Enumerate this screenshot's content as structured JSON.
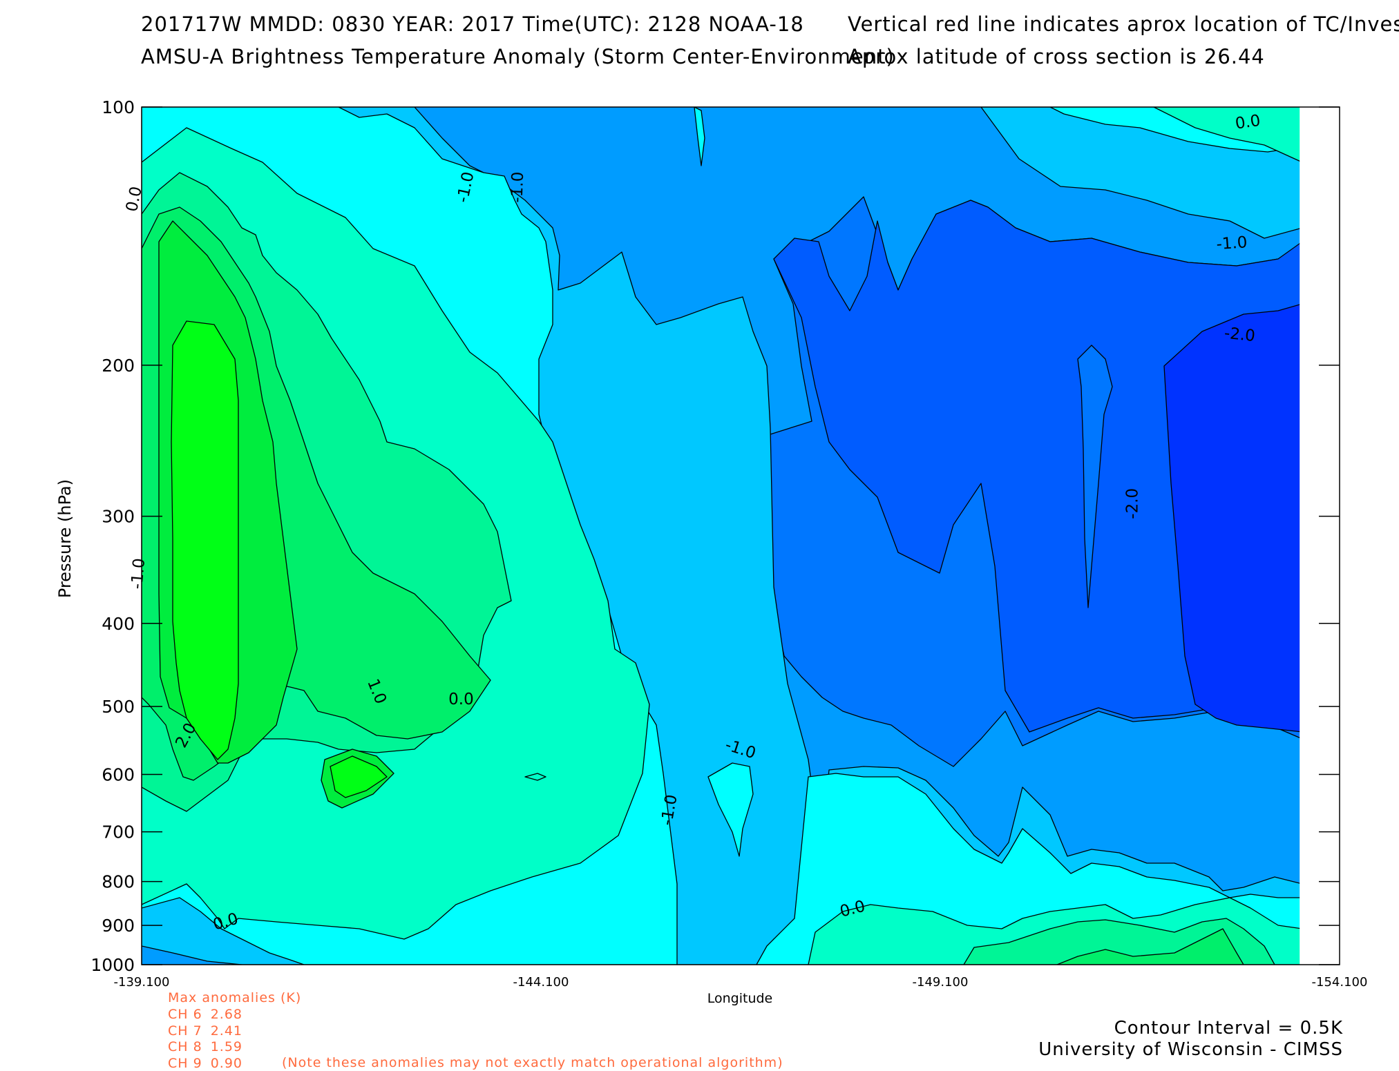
{
  "header": {
    "line1_left": "201717W  MMDD: 0830 YEAR: 2017 Time(UTC): 2128 NOAA-18",
    "line1_right": "Vertical red line indicates aprox location of TC/Invest",
    "line2_left": "AMSU-A Brightness Temperature Anomaly (Storm Center-Environment)",
    "line2_right": "Aprox latitude of cross section is 26.44"
  },
  "chart_data": {
    "type": "contour",
    "xlabel": "Longitude",
    "ylabel": "Pressure (hPa)",
    "x_ticks": [
      -139.1,
      -144.1,
      -149.1,
      -154.1
    ],
    "x_tick_labels": [
      "-139.100",
      "-144.100",
      "-149.100",
      "-154.100"
    ],
    "xlim": [
      -139.1,
      -154.1
    ],
    "x_data_end": -153.6,
    "y_ticks": [
      100,
      200,
      300,
      400,
      500,
      600,
      700,
      800,
      900,
      1000
    ],
    "y_tick_labels": [
      "100",
      "200",
      "300",
      "400",
      "500",
      "600",
      "700",
      "800",
      "900",
      "1000"
    ],
    "ylim": [
      100,
      1000
    ],
    "y_scale": "log",
    "contour_interval_K": 0.5,
    "color_levels": [
      {
        "range": "< -2.5",
        "color": "#0033ff"
      },
      {
        "range": "-2.5 to -2.0",
        "color": "#005cff"
      },
      {
        "range": "-2.0 to -1.5",
        "color": "#0077ff"
      },
      {
        "range": "-1.5 to -1.0",
        "color": "#009cff"
      },
      {
        "range": "-1.0 to -0.5",
        "color": "#00c8ff"
      },
      {
        "range": "-0.5 to 0.0",
        "color": "#00ffff"
      },
      {
        "range": "0.0 to 0.5",
        "color": "#00ffc8"
      },
      {
        "range": "0.5 to 1.0",
        "color": "#00f596"
      },
      {
        "range": "1.0 to 1.5",
        "color": "#00ef6b"
      },
      {
        "range": "1.5 to 2.0",
        "color": "#00ed3e"
      },
      {
        "range": "> 2.0",
        "color": "#00ff16"
      }
    ],
    "contour_labels": [
      {
        "text": "0.0",
        "x": -139.0,
        "y": 128,
        "rotate": -78
      },
      {
        "text": "-1.0",
        "x": -143.15,
        "y": 124,
        "rotate": -78
      },
      {
        "text": "-1.0",
        "x": -143.8,
        "y": 124,
        "rotate": -88
      },
      {
        "text": "0.0",
        "x": -152.95,
        "y": 104,
        "rotate": -8
      },
      {
        "text": "-1.0",
        "x": -152.75,
        "y": 144,
        "rotate": -4
      },
      {
        "text": "-2.0",
        "x": -152.85,
        "y": 184,
        "rotate": 6
      },
      {
        "text": "-2.0",
        "x": -151.5,
        "y": 290,
        "rotate": -90
      },
      {
        "text": "-1.0",
        "x": -139.05,
        "y": 350,
        "rotate": -85
      },
      {
        "text": "1.0",
        "x": -142.05,
        "y": 480,
        "rotate": 68
      },
      {
        "text": "0.0",
        "x": -143.1,
        "y": 490,
        "rotate": 0
      },
      {
        "text": "2.0",
        "x": -139.65,
        "y": 540,
        "rotate": -62
      },
      {
        "text": "-1.0",
        "x": -146.6,
        "y": 560,
        "rotate": 18
      },
      {
        "text": "-1.0",
        "x": -145.7,
        "y": 660,
        "rotate": -80
      },
      {
        "text": "0.0",
        "x": -140.15,
        "y": 890,
        "rotate": -16
      },
      {
        "text": "0.0",
        "x": -148.0,
        "y": 860,
        "rotate": -14
      }
    ],
    "max_anomalies": {
      "title": "Max anomalies (K)",
      "channels": [
        {
          "label": "CH 6",
          "value": "2.68"
        },
        {
          "label": "CH 7",
          "value": "2.41"
        },
        {
          "label": "CH 8",
          "value": "1.59"
        },
        {
          "label": "CH 9",
          "value": "0.90"
        }
      ],
      "note": "(Note these anomalies may not exactly match operational algorithm)"
    }
  },
  "footer": {
    "contour_interval": "Contour Interval = 0.5K",
    "credit": "University of Wisconsin - CIMSS"
  }
}
